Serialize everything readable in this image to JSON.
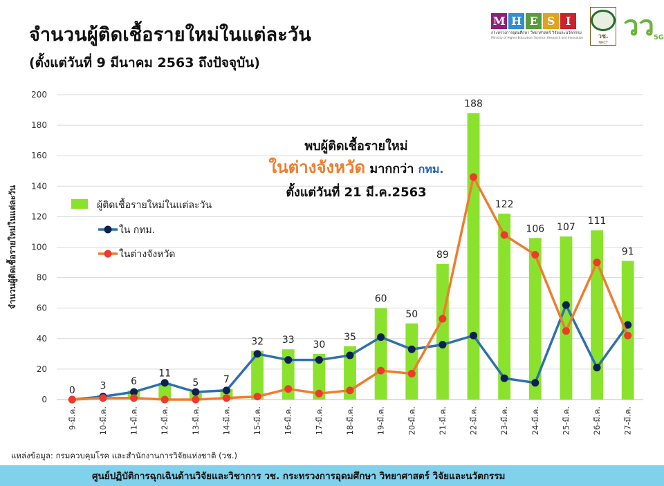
{
  "header": {
    "title": "จำนวนผู้ติดเชื้อรายใหม่ในแต่ละวัน",
    "subtitle": "(ตั้งแต่วันที่ 9 มีนาคม 2563 ถึงปัจจุบัน)"
  },
  "logos": {
    "mhesi_letters": [
      "M",
      "H",
      "E",
      "S",
      "I"
    ],
    "mhesi_colors": [
      "#8e1f7a",
      "#2f8fcf",
      "#5a9b3a",
      "#e0a21f",
      "#c9232d"
    ],
    "mhesi_caption": "กระทรวงการอุดมศึกษา วิทยาศาสตร์ วิจัยและนวัตกรรม",
    "mhesi_caption_en": "Ministry of Higher Education, Science, Research and Innovation",
    "nrct_label": "วช.",
    "nrct_sub": "NRCT",
    "vc_mark": "วว",
    "vc_5g": "5G"
  },
  "annotation": {
    "line1": "พบผู้ติดเชื้อรายใหม่",
    "line2_highlight": "ในต่างจังหวัด",
    "line2_mid": "มากกว่า",
    "line2_bkk": "กทม.",
    "line3": "ตั้งแต่วันที่ 21 มี.ค.2563"
  },
  "chart_data": {
    "type": "bar",
    "categories": [
      "9-มี.ค.",
      "10-มี.ค.",
      "11-มี.ค.",
      "12-มี.ค.",
      "13-มี.ค.",
      "14-มี.ค.",
      "15-มี.ค.",
      "16-มี.ค.",
      "17-มี.ค.",
      "18-มี.ค.",
      "19-มี.ค.",
      "20-มี.ค.",
      "21-มี.ค.",
      "22-มี.ค.",
      "23-มี.ค.",
      "24-มี.ค.",
      "25-มี.ค.",
      "26-มี.ค.",
      "27-มี.ค."
    ],
    "ylabel": "จำนวนผู้ติดเชื้อรายใหม่ในแต่ละวัน",
    "ylim": [
      0,
      200
    ],
    "yticks": [
      0,
      20,
      40,
      60,
      80,
      100,
      120,
      140,
      160,
      180,
      200
    ],
    "grid": true,
    "legend_position": "left",
    "series": [
      {
        "name": "ผู้ติดเชื้อรายใหม่ในแต่ละวัน",
        "type": "bar",
        "color": "#8be22d",
        "values": [
          0,
          3,
          6,
          11,
          5,
          7,
          32,
          33,
          30,
          35,
          60,
          50,
          89,
          188,
          122,
          106,
          107,
          111,
          91
        ]
      },
      {
        "name": "ใน กทม.",
        "type": "line",
        "color": "#2f6fae",
        "marker_color": "#0d2151",
        "values": [
          0,
          2,
          5,
          11,
          5,
          6,
          30,
          26,
          26,
          29,
          41,
          33,
          36,
          42,
          14,
          11,
          62,
          21,
          49
        ]
      },
      {
        "name": "ในต่างจังหวัด",
        "type": "line",
        "color": "#ee7d2e",
        "marker_color": "#ec3b2c",
        "values": [
          0,
          1,
          1,
          0,
          0,
          1,
          2,
          7,
          4,
          6,
          19,
          17,
          53,
          146,
          108,
          95,
          45,
          90,
          42
        ]
      }
    ]
  },
  "source": "แหล่งข้อมูล: กรมควบคุมโรค และสำนักงานการวิจัยแห่งชาติ (วช.)",
  "footer": "ศูนย์ปฏิบัติการฉุกเฉินด้านวิจัยและวิชาการ   วช.   กระทรวงการอุดมศึกษา วิทยาศาสตร์ วิจัยและนวัตกรรม"
}
